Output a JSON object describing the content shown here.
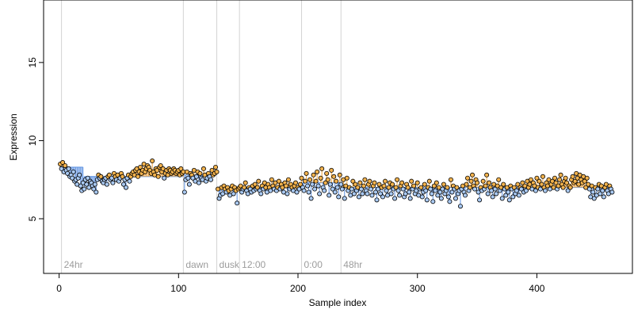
{
  "colors": {
    "above_fill": "#f2b24d",
    "below_fill": "#a9c9f2",
    "above_line": "#f2a43a",
    "below_line": "#5a8fe0",
    "mean_line": "#6f9fe6",
    "marker_stroke": "#000000",
    "vline": "#d3d3d3",
    "annotation": "#9c9c9c"
  },
  "chart_data": {
    "type": "scatter",
    "title": "",
    "xlabel": "Sample index",
    "ylabel": "Expression",
    "xlim": [
      -13,
      480
    ],
    "ylim": [
      1.5,
      19.0
    ],
    "x_ticks": [
      0,
      100,
      200,
      300,
      400
    ],
    "y_ticks": [
      5,
      10,
      15
    ],
    "grid": false,
    "legend": "none",
    "vlines": [
      {
        "x": 2,
        "label": "24hr"
      },
      {
        "x": 104,
        "label": "dawn"
      },
      {
        "x": 132,
        "label": "dusk"
      },
      {
        "x": 151,
        "label": "12:00"
      },
      {
        "x": 203,
        "label": "0:00"
      },
      {
        "x": 236,
        "label": "48hr"
      }
    ],
    "segments": [
      {
        "x_start": 1,
        "x_end": 20,
        "mean": 8.3
      },
      {
        "x_start": 21,
        "x_end": 104,
        "mean": 7.7
      },
      {
        "x_start": 105,
        "x_end": 132,
        "mean": 7.8
      },
      {
        "x_start": 133,
        "x_end": 151,
        "mean": 6.8
      },
      {
        "x_start": 152,
        "x_end": 203,
        "mean": 7.0
      },
      {
        "x_start": 204,
        "x_end": 236,
        "mean": 7.3
      },
      {
        "x_start": 237,
        "x_end": 462,
        "mean": 7.0
      }
    ],
    "points_x_start": 1,
    "points_y": [
      8.5,
      8.2,
      8.6,
      8.0,
      8.4,
      8.1,
      7.9,
      8.2,
      7.7,
      7.8,
      7.6,
      8.0,
      7.4,
      7.5,
      7.2,
      7.6,
      7.8,
      7.1,
      6.8,
      7.3,
      6.9,
      7.5,
      7.2,
      7.6,
      7.0,
      7.4,
      7.3,
      7.1,
      6.9,
      7.2,
      6.7,
      7.5,
      7.8,
      7.6,
      7.7,
      7.4,
      7.3,
      7.5,
      7.6,
      7.2,
      7.7,
      7.8,
      7.5,
      7.6,
      7.3,
      7.9,
      7.7,
      7.5,
      7.8,
      7.4,
      7.6,
      7.9,
      7.7,
      7.2,
      7.5,
      7.0,
      7.6,
      7.8,
      7.4,
      7.7,
      7.9,
      8.0,
      7.8,
      8.1,
      8.2,
      7.7,
      8.0,
      8.3,
      7.9,
      8.1,
      8.5,
      8.0,
      8.2,
      8.4,
      8.3,
      8.1,
      7.9,
      8.7,
      8.0,
      7.8,
      8.2,
      8.1,
      7.7,
      8.3,
      8.4,
      8.0,
      8.2,
      7.6,
      7.9,
      8.1,
      7.8,
      8.2,
      8.1,
      7.9,
      8.0,
      8.2,
      8.1,
      7.9,
      8.0,
      8.1,
      7.8,
      8.2,
      7.9,
      8.0,
      6.7,
      7.5,
      8.0,
      7.6,
      7.2,
      7.9,
      7.8,
      7.6,
      8.1,
      7.4,
      7.7,
      8.0,
      7.3,
      7.9,
      7.6,
      7.5,
      8.2,
      7.8,
      7.4,
      7.6,
      7.9,
      7.7,
      7.5,
      8.1,
      7.8,
      7.9,
      8.3,
      8.0,
      6.9,
      6.3,
      6.5,
      7.0,
      6.6,
      7.1,
      6.9,
      6.7,
      7.0,
      6.8,
      6.5,
      6.9,
      7.1,
      6.6,
      7.0,
      6.8,
      6.0,
      6.9,
      7.0,
      7.1,
      6.7,
      6.9,
      7.0,
      7.3,
      6.8,
      6.6,
      7.0,
      6.9,
      6.7,
      7.1,
      6.8,
      7.2,
      6.9,
      7.0,
      7.4,
      6.8,
      6.6,
      7.1,
      6.9,
      7.3,
      7.0,
      6.7,
      7.2,
      7.0,
      6.8,
      7.5,
      7.1,
      6.9,
      7.3,
      6.8,
      7.0,
      7.4,
      6.9,
      7.2,
      7.0,
      6.7,
      7.3,
      7.1,
      6.6,
      7.5,
      6.9,
      7.2,
      7.0,
      6.8,
      7.1,
      7.3,
      6.7,
      7.0,
      6.9,
      7.2,
      7.6,
      7.0,
      6.8,
      7.4,
      7.9,
      7.1,
      6.7,
      7.5,
      6.3,
      7.2,
      7.8,
      6.9,
      7.4,
      8.0,
      7.1,
      6.6,
      7.6,
      8.2,
      7.0,
      6.8,
      7.3,
      7.9,
      7.5,
      6.5,
      7.2,
      8.1,
      6.9,
      7.7,
      6.7,
      7.4,
      7.0,
      6.4,
      7.8,
      7.2,
      6.9,
      7.5,
      6.3,
      7.1,
      7.6,
      6.8,
      7.0,
      6.5,
      6.9,
      7.4,
      6.6,
      7.2,
      6.8,
      7.0,
      6.4,
      7.3,
      6.9,
      6.6,
      7.1,
      7.5,
      6.8,
      6.6,
      7.2,
      7.4,
      6.9,
      6.5,
      7.1,
      7.3,
      6.7,
      6.2,
      6.9,
      7.2,
      6.6,
      7.0,
      6.4,
      7.1,
      7.4,
      6.8,
      6.5,
      7.0,
      7.3,
      6.6,
      7.2,
      6.9,
      6.3,
      7.0,
      7.5,
      6.8,
      6.5,
      7.1,
      7.3,
      6.9,
      6.4,
      6.6,
      7.2,
      7.0,
      6.7,
      6.3,
      7.4,
      6.9,
      7.1,
      6.6,
      6.8,
      7.3,
      6.5,
      6.9,
      7.0,
      6.4,
      6.7,
      7.2,
      6.8,
      6.2,
      7.0,
      7.4,
      6.9,
      6.6,
      6.1,
      7.1,
      6.8,
      7.3,
      6.5,
      7.0,
      6.7,
      6.3,
      6.9,
      7.2,
      6.6,
      6.8,
      7.0,
      6.4,
      6.1,
      7.5,
      6.7,
      7.1,
      6.9,
      6.3,
      7.0,
      6.6,
      6.8,
      5.8,
      6.9,
      7.1,
      6.7,
      6.5,
      7.2,
      7.6,
      6.8,
      7.0,
      7.4,
      7.8,
      7.1,
      6.9,
      7.5,
      7.3,
      6.7,
      6.2,
      7.0,
      6.8,
      7.4,
      6.9,
      7.1,
      7.8,
      6.6,
      7.3,
      7.0,
      6.8,
      6.4,
      7.2,
      6.9,
      6.6,
      7.1,
      7.5,
      6.8,
      7.0,
      6.3,
      7.2,
      6.9,
      6.5,
      7.0,
      6.7,
      6.2,
      7.1,
      6.9,
      6.4,
      7.0,
      6.6,
      6.8,
      7.2,
      6.5,
      7.0,
      6.9,
      7.3,
      6.7,
      7.1,
      6.8,
      7.4,
      7.0,
      7.2,
      7.5,
      6.9,
      7.3,
      7.1,
      6.8,
      7.6,
      7.0,
      7.4,
      6.9,
      7.2,
      7.7,
      7.0,
      6.8,
      7.3,
      7.1,
      7.5,
      6.9,
      7.2,
      7.4,
      7.0,
      7.6,
      7.3,
      6.9,
      7.1,
      7.5,
      7.8,
      7.2,
      7.0,
      7.4,
      7.6,
      7.3,
      6.8,
      7.1,
      7.0,
      7.5,
      7.7,
      7.3,
      7.4,
      7.9,
      7.6,
      7.2,
      7.8,
      7.5,
      7.3,
      7.7,
      7.4,
      7.0,
      7.6,
      7.2,
      6.9,
      6.4,
      7.1,
      6.7,
      6.3,
      7.0,
      6.5,
      6.9,
      7.2,
      6.6,
      7.1,
      6.8,
      6.4,
      7.0,
      7.2,
      6.8,
      6.6,
      7.1,
      6.9,
      6.7
    ]
  }
}
